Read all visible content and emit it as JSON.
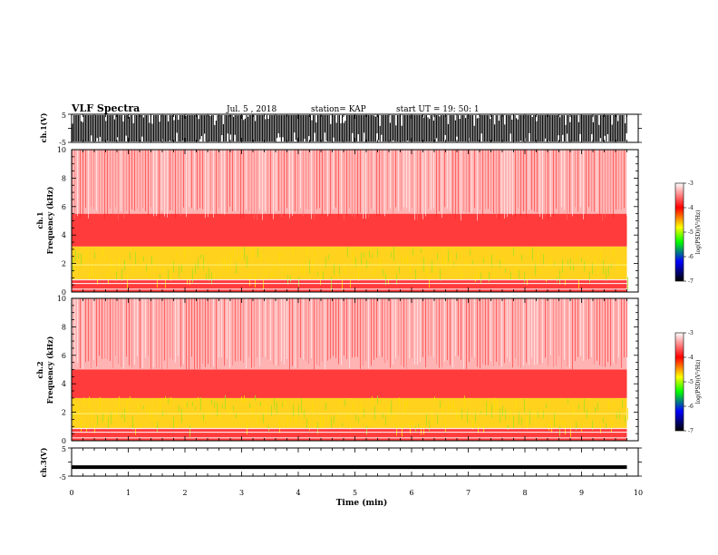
{
  "header": {
    "title": "VLF Spectra",
    "date": "Jul. 5 , 2018",
    "station": "station= KAP",
    "start_time": "start UT = 19: 50: 1"
  },
  "chart_data": [
    {
      "type": "line",
      "name": "ch1-waveform",
      "ylabel": "ch.1(V)",
      "ylim": [
        -5,
        5
      ],
      "yticks": [
        "5",
        "-5"
      ],
      "xlim": [
        0,
        10
      ],
      "description_values": "dense vertical spikes filling ±5 V",
      "data_end_min": 9.8
    },
    {
      "type": "heatmap",
      "name": "ch1-spectrogram",
      "ylabel": "ch.1",
      "ylabel2": "Frequency (kHz)",
      "ylim": [
        0,
        10
      ],
      "yticks": [
        "0",
        "2",
        "4",
        "6",
        "8",
        "10"
      ],
      "xlim": [
        0,
        10
      ],
      "data_end_min": 9.8,
      "bands": [
        {
          "f_low": 0.0,
          "f_high": 0.9,
          "level": "red"
        },
        {
          "f_low": 0.9,
          "f_high": 3.2,
          "level": "yellow"
        },
        {
          "f_low": 3.2,
          "f_high": 5.5,
          "level": "red"
        },
        {
          "f_low": 5.5,
          "f_high": 10.0,
          "level": "light red"
        }
      ],
      "colorbar": {
        "label": "log(PSD)(V²/Hz)",
        "range": [
          -7,
          -3
        ],
        "ticks": [
          "-3",
          "-4",
          "-5",
          "-6",
          "-7"
        ],
        "colors": [
          "#ffffff",
          "#ff0000",
          "#ffff00",
          "#00ff00",
          "#0000ff",
          "#000000"
        ]
      }
    },
    {
      "type": "heatmap",
      "name": "ch2-spectrogram",
      "ylabel": "ch.2",
      "ylabel2": "Frequency (kHz)",
      "ylim": [
        0,
        10
      ],
      "yticks": [
        "0",
        "2",
        "4",
        "6",
        "8",
        "10"
      ],
      "xlim": [
        0,
        10
      ],
      "data_end_min": 9.8,
      "bands": [
        {
          "f_low": 0.0,
          "f_high": 0.9,
          "level": "red"
        },
        {
          "f_low": 0.9,
          "f_high": 3.0,
          "level": "yellow"
        },
        {
          "f_low": 3.0,
          "f_high": 5.0,
          "level": "red"
        },
        {
          "f_low": 5.0,
          "f_high": 10.0,
          "level": "light red"
        }
      ],
      "colorbar": {
        "label": "log(PSD)(V²/Hz)",
        "range": [
          -7,
          -3
        ],
        "ticks": [
          "-3",
          "-4",
          "-5",
          "-6",
          "-7"
        ]
      }
    },
    {
      "type": "line",
      "name": "ch3-waveform",
      "ylabel": "ch.3(V)",
      "ylim": [
        -5,
        5
      ],
      "yticks": [
        "5",
        "-5"
      ],
      "xlim": [
        0,
        10
      ],
      "values": [
        {
          "x": 0,
          "y": -1.8
        },
        {
          "x": 9.8,
          "y": -1.8
        }
      ],
      "xlabel": "Time (min)",
      "xticks": [
        "0",
        "1",
        "2",
        "3",
        "4",
        "5",
        "6",
        "7",
        "8",
        "9",
        "10"
      ]
    }
  ]
}
